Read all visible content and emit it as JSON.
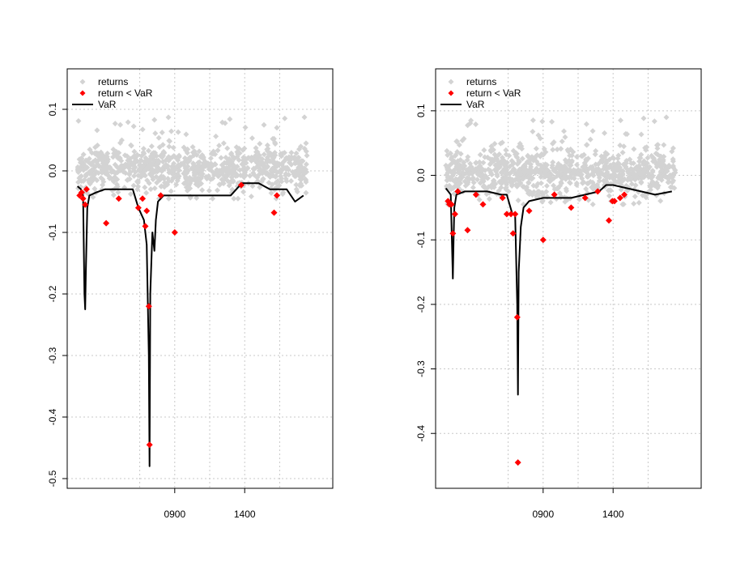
{
  "chart_data": [
    {
      "type": "scatter",
      "xlabel": "",
      "ylabel": "",
      "xlim": [
        1,
        1760
      ],
      "ylim": [
        -0.5,
        0.15
      ],
      "grid": true,
      "x_ticks": [
        {
          "pos": 700,
          "label": "0900"
        },
        {
          "pos": 1200,
          "label": "1400"
        }
      ],
      "y_ticks": [
        {
          "value": 0.1,
          "label": "0.1"
        },
        {
          "value": 0.0,
          "label": "0.0"
        },
        {
          "value": -0.1,
          "label": "-0.1"
        },
        {
          "value": -0.2,
          "label": "-0.2"
        },
        {
          "value": -0.3,
          "label": "-0.3"
        },
        {
          "value": -0.4,
          "label": "-0.4"
        },
        {
          "value": -0.5,
          "label": "-0.5"
        }
      ],
      "legend": {
        "position": "top-left",
        "entries": [
          {
            "label": "returns",
            "color": "#d3d3d3",
            "symbol": "diamond"
          },
          {
            "label": "return < VaR",
            "color": "#ff0000",
            "symbol": "diamond"
          },
          {
            "label": "VaR",
            "color": "#000000",
            "symbol": "line"
          }
        ]
      },
      "series": [
        {
          "name": "returns",
          "color": "#d3d3d3"
        },
        {
          "name": "return < VaR",
          "color": "#ff0000",
          "x": [
            20,
            35,
            45,
            60,
            70,
            210,
            300,
            440,
            470,
            490,
            500,
            515,
            520,
            600,
            700,
            1175,
            1410,
            1430
          ],
          "y": [
            -0.04,
            -0.035,
            -0.045,
            -0.055,
            -0.03,
            -0.085,
            -0.045,
            -0.06,
            -0.045,
            -0.09,
            -0.065,
            -0.22,
            -0.445,
            -0.04,
            -0.1,
            -0.023,
            -0.068,
            -0.04
          ]
        },
        {
          "name": "VaR",
          "color": "#000000",
          "x": [
            5,
            30,
            45,
            55,
            60,
            65,
            75,
            90,
            140,
            200,
            300,
            400,
            440,
            480,
            500,
            515,
            520,
            525,
            540,
            555,
            565,
            580,
            620,
            700,
            780,
            900,
            1000,
            1100,
            1140,
            1180,
            1210,
            1300,
            1380,
            1500,
            1560,
            1620
          ],
          "y": [
            -0.025,
            -0.03,
            -0.04,
            -0.2,
            -0.225,
            -0.16,
            -0.06,
            -0.04,
            -0.035,
            -0.03,
            -0.03,
            -0.03,
            -0.06,
            -0.08,
            -0.12,
            -0.3,
            -0.48,
            -0.2,
            -0.1,
            -0.13,
            -0.08,
            -0.05,
            -0.04,
            -0.04,
            -0.04,
            -0.04,
            -0.04,
            -0.04,
            -0.03,
            -0.02,
            -0.02,
            -0.02,
            -0.03,
            -0.03,
            -0.05,
            -0.04
          ]
        }
      ]
    },
    {
      "type": "scatter",
      "xlabel": "",
      "ylabel": "",
      "xlim": [
        1,
        1760
      ],
      "ylim": [
        -0.47,
        0.15
      ],
      "grid": true,
      "x_ticks": [
        {
          "pos": 700,
          "label": "0900"
        },
        {
          "pos": 1200,
          "label": "1400"
        }
      ],
      "y_ticks": [
        {
          "value": 0.1,
          "label": "0.1"
        },
        {
          "value": 0.0,
          "label": "0.0"
        },
        {
          "value": -0.1,
          "label": "-0.1"
        },
        {
          "value": -0.2,
          "label": "-0.2"
        },
        {
          "value": -0.3,
          "label": "-0.3"
        },
        {
          "value": -0.4,
          "label": "-0.4"
        }
      ],
      "legend": {
        "position": "top-left",
        "entries": [
          {
            "label": "returns",
            "color": "#d3d3d3",
            "symbol": "diamond"
          },
          {
            "label": "return < VaR",
            "color": "#ff0000",
            "symbol": "diamond"
          },
          {
            "label": "VaR",
            "color": "#000000",
            "symbol": "line"
          }
        ]
      },
      "series": [
        {
          "name": "returns",
          "color": "#d3d3d3"
        },
        {
          "name": "return < VaR",
          "color": "#ff0000",
          "x": [
            20,
            30,
            45,
            55,
            70,
            90,
            160,
            220,
            270,
            410,
            440,
            470,
            485,
            500,
            515,
            520,
            600,
            700,
            780,
            900,
            1000,
            1090,
            1170,
            1195,
            1210,
            1250,
            1280
          ],
          "y": [
            -0.04,
            -0.045,
            -0.045,
            -0.09,
            -0.06,
            -0.025,
            -0.085,
            -0.03,
            -0.045,
            -0.035,
            -0.06,
            -0.06,
            -0.09,
            -0.06,
            -0.22,
            -0.445,
            -0.055,
            -0.1,
            -0.03,
            -0.05,
            -0.035,
            -0.025,
            -0.07,
            -0.04,
            -0.04,
            -0.035,
            -0.03
          ]
        },
        {
          "name": "VaR",
          "color": "#000000",
          "x": [
            5,
            40,
            55,
            60,
            65,
            80,
            140,
            200,
            300,
            400,
            440,
            480,
            500,
            515,
            520,
            525,
            540,
            560,
            600,
            700,
            800,
            900,
            1000,
            1100,
            1150,
            1200,
            1300,
            1400,
            1500,
            1620
          ],
          "y": [
            -0.02,
            -0.03,
            -0.16,
            -0.1,
            -0.05,
            -0.03,
            -0.025,
            -0.025,
            -0.025,
            -0.03,
            -0.03,
            -0.06,
            -0.06,
            -0.2,
            -0.34,
            -0.15,
            -0.08,
            -0.05,
            -0.04,
            -0.035,
            -0.035,
            -0.035,
            -0.03,
            -0.025,
            -0.015,
            -0.015,
            -0.02,
            -0.025,
            -0.03,
            -0.025
          ]
        }
      ]
    }
  ]
}
